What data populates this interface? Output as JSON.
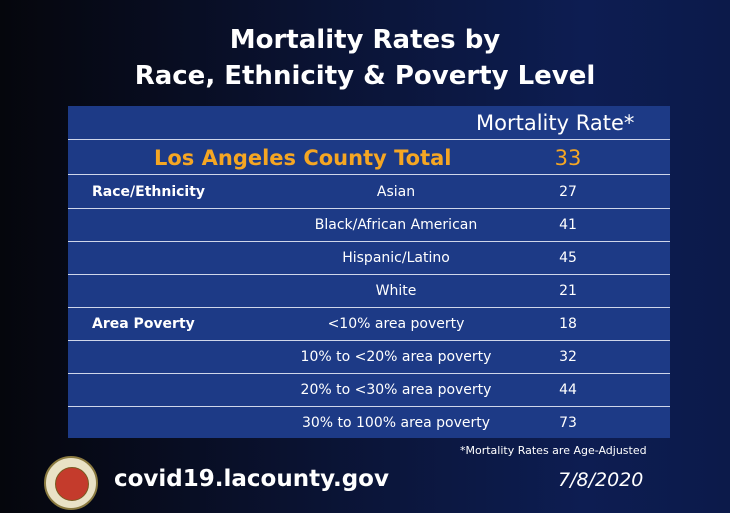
{
  "title_line1": "Mortality Rates by",
  "title_line2": "Race, Ethnicity & Poverty Level",
  "table": {
    "rate_header": "Mortality Rate*",
    "total": {
      "label": "Los Angeles County Total",
      "value": "33"
    },
    "rows": [
      {
        "category": "Race/Ethnicity",
        "group": "Asian",
        "rate": "27"
      },
      {
        "category": "",
        "group": "Black/African American",
        "rate": "41"
      },
      {
        "category": "",
        "group": "Hispanic/Latino",
        "rate": "45"
      },
      {
        "category": "",
        "group": "White",
        "rate": "21"
      },
      {
        "category": "Area Poverty",
        "group": "<10% area poverty",
        "rate": "18"
      },
      {
        "category": "",
        "group": "10% to <20% area poverty",
        "rate": "32"
      },
      {
        "category": "",
        "group": "20% to <30% area poverty",
        "rate": "44"
      },
      {
        "category": "",
        "group": "30% to 100% area poverty",
        "rate": "73"
      }
    ]
  },
  "footnote": "*Mortality Rates are Age-Adjusted",
  "website": "covid19.lacounty.gov",
  "date": "7/8/2020",
  "colors": {
    "highlight": "#f5a623",
    "table_bg": "#1d3a86"
  }
}
